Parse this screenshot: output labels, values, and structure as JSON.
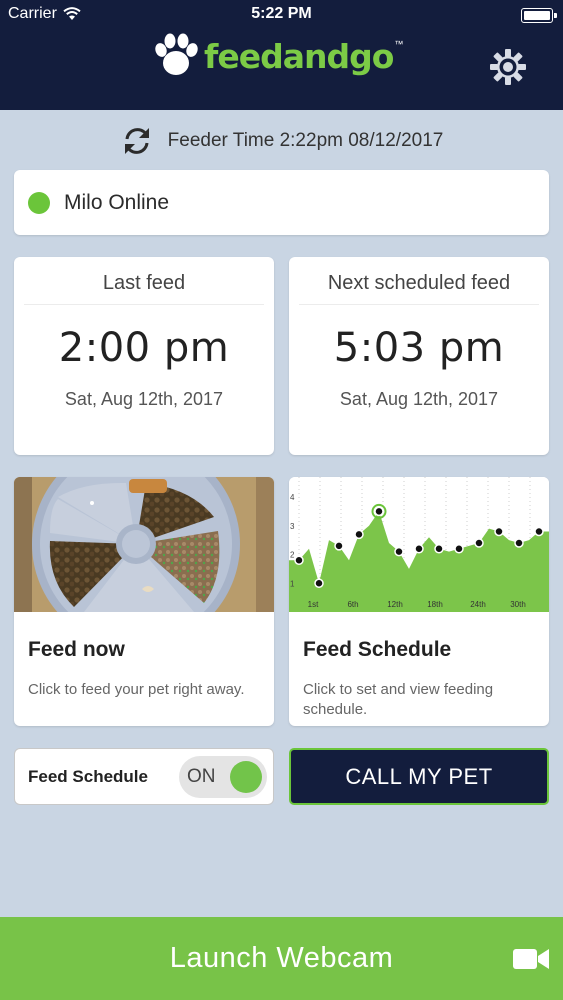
{
  "status_bar": {
    "carrier": "Carrier",
    "time": "5:22 PM"
  },
  "header": {
    "logo_text": "feedandgo",
    "logo_tm": "™"
  },
  "feeder_time": {
    "text": "Feeder Time 2:22pm 08/12/2017"
  },
  "pet_status": {
    "text": "Milo Online",
    "color": "#6bc53a"
  },
  "last_feed": {
    "title": "Last feed",
    "time": "2:00 pm",
    "date": "Sat, Aug 12th, 2017"
  },
  "next_feed": {
    "title": "Next scheduled feed",
    "time": "5:03 pm",
    "date": "Sat, Aug 12th, 2017"
  },
  "feed_now": {
    "title": "Feed now",
    "description": "Click to feed your pet right away."
  },
  "feed_schedule_tile": {
    "title": "Feed Schedule",
    "description": "Click to set and view feeding schedule."
  },
  "chart_data": {
    "type": "area",
    "x_ticks": [
      "1st",
      "6th",
      "12th",
      "18th",
      "24th",
      "30th"
    ],
    "y_ticks": [
      "1",
      "2",
      "3",
      "4"
    ],
    "ylim": [
      0,
      4
    ],
    "values": [
      1.8,
      2.2,
      1,
      2.5,
      2.3,
      1.8,
      2.7,
      3,
      3.5,
      2.4,
      2.1,
      1.5,
      2.2,
      2.6,
      2.2,
      2.1,
      2.2,
      2.3,
      2.4,
      2.9,
      2.8,
      2.5,
      2.4,
      2.5,
      2.8
    ],
    "color": "#7cc54a"
  },
  "schedule_toggle": {
    "label": "Feed Schedule",
    "state": "ON"
  },
  "call_button": {
    "label": "CALL MY PET"
  },
  "webcam_button": {
    "label": "Launch Webcam"
  },
  "colors": {
    "navy": "#131d3d",
    "green": "#78c348",
    "background": "#c9d5e3"
  }
}
